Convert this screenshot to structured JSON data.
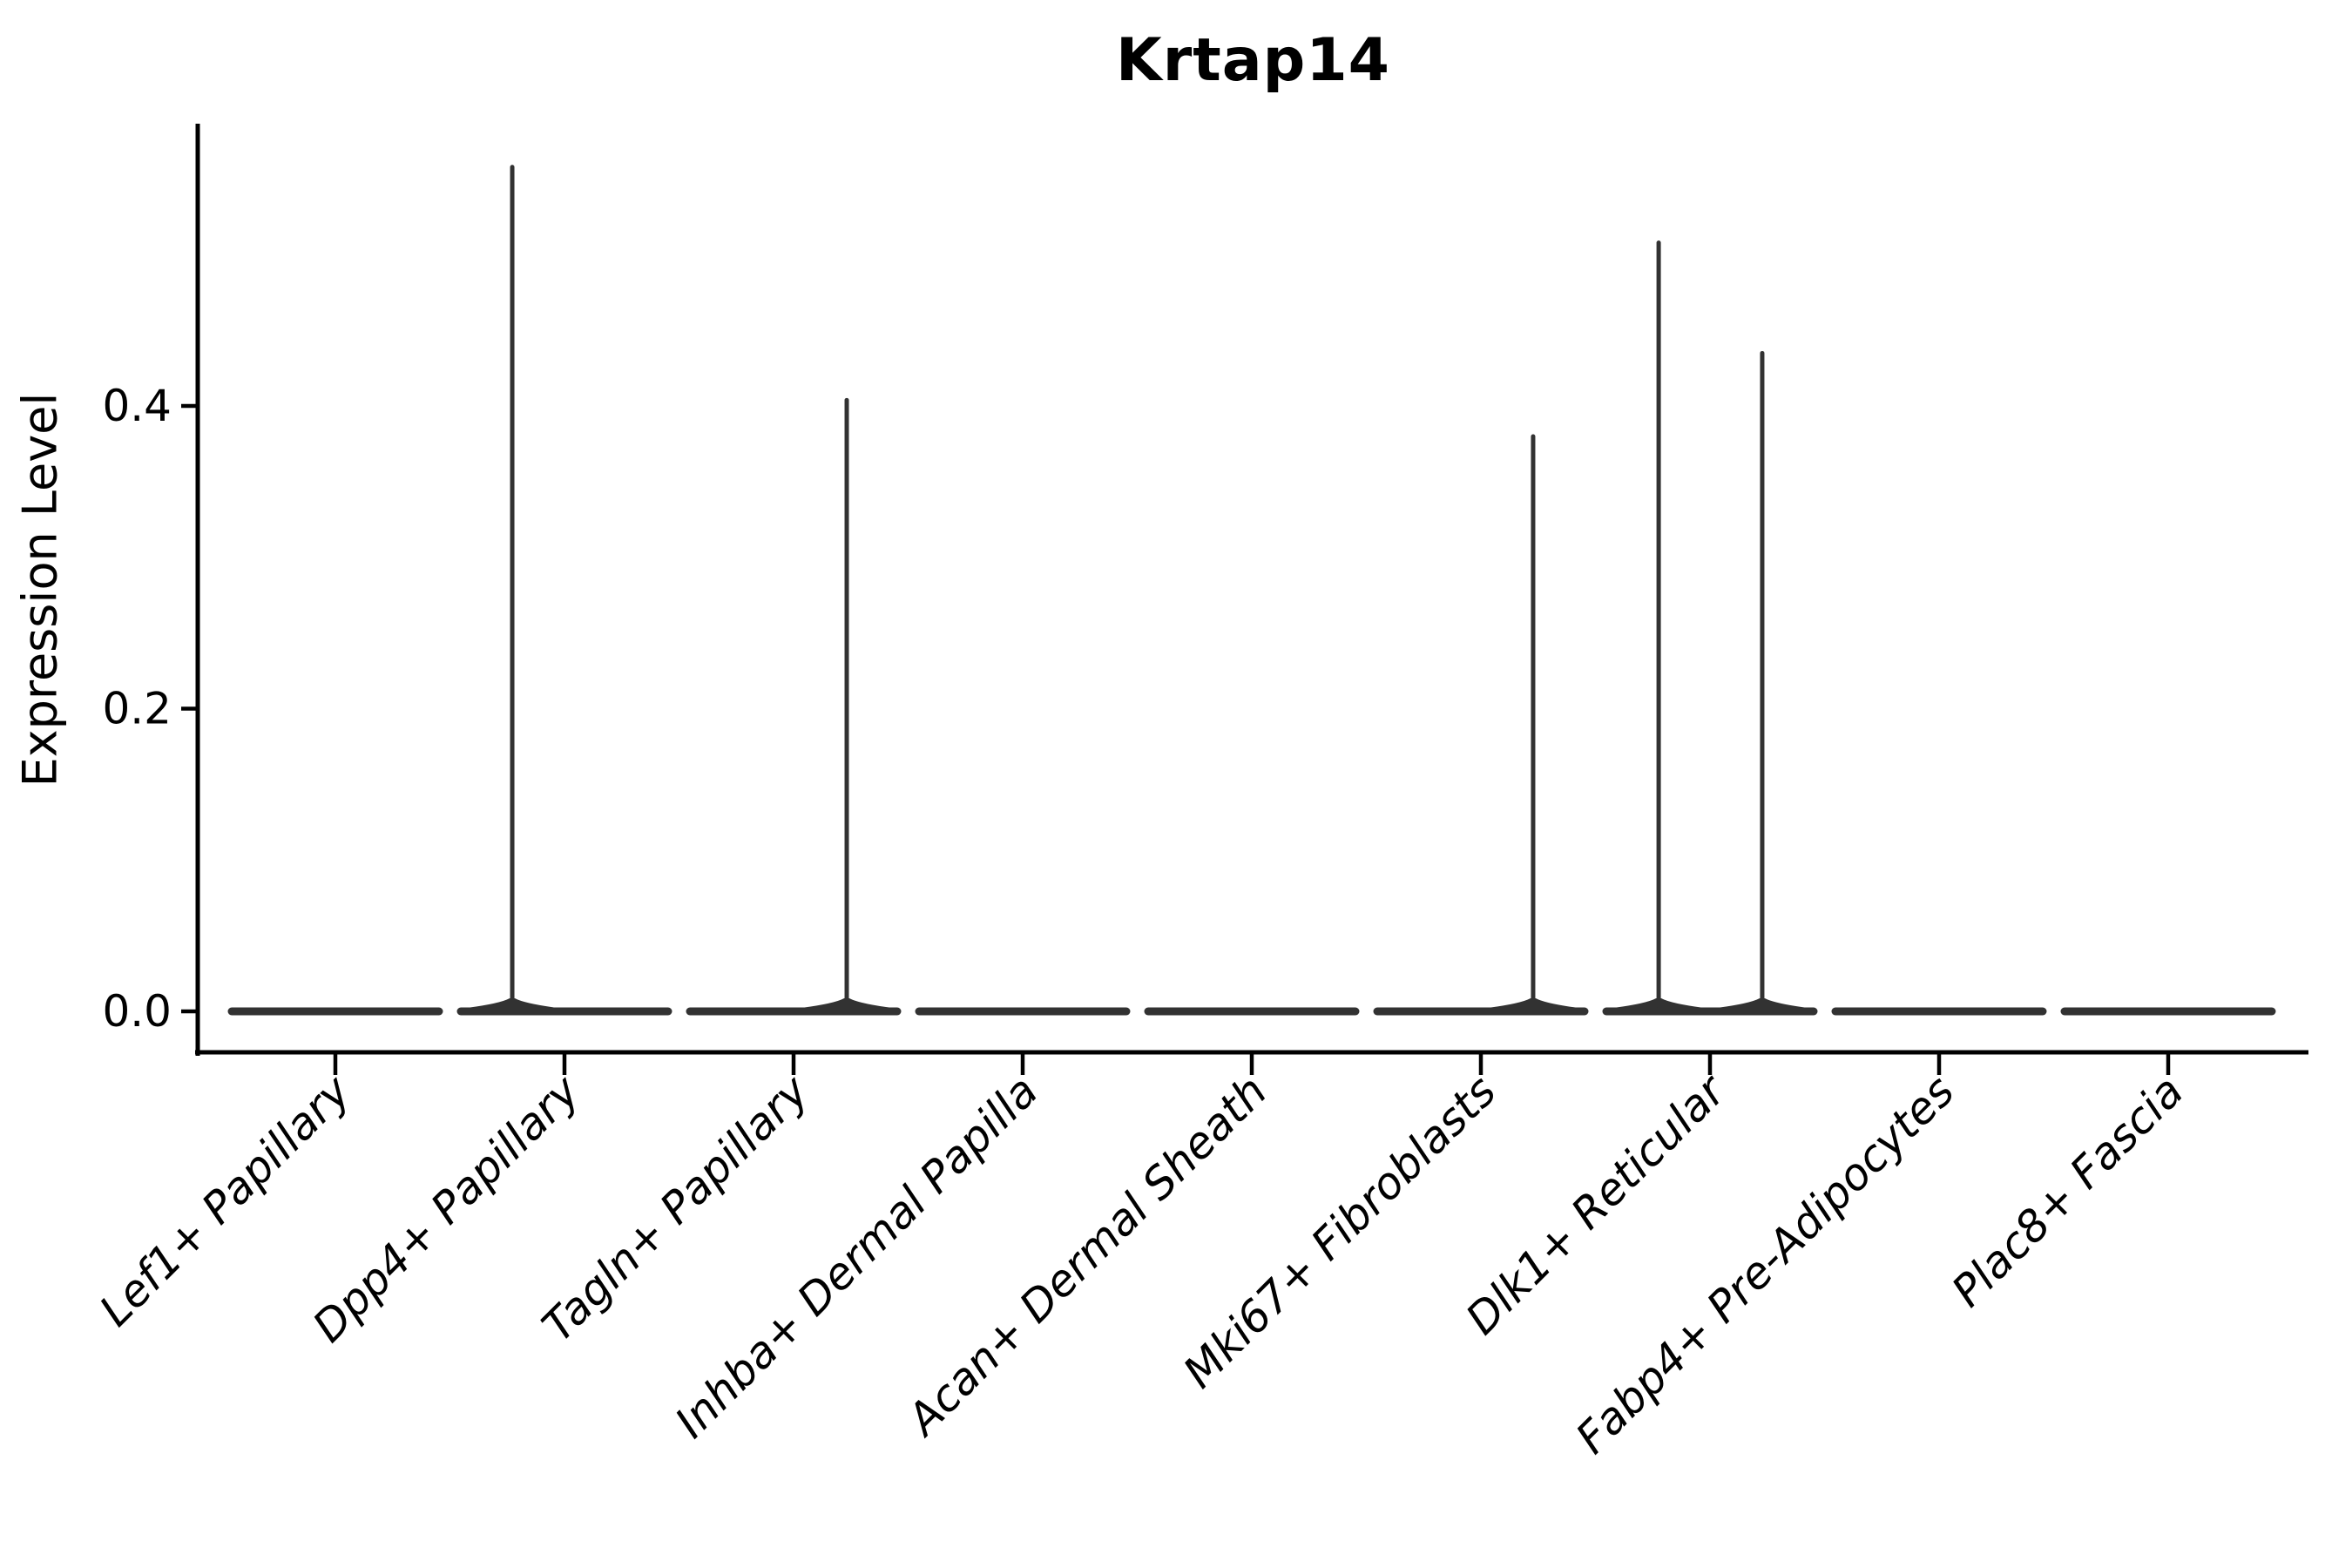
{
  "chart_data": {
    "type": "violin",
    "title": "Krtap14",
    "xlabel": "",
    "ylabel": "Expression Level",
    "categories": [
      "Lef1+ Papillary",
      "Dpp4+ Papillary",
      "Tagln+ Papillary",
      "Inhba+ Dermal Papilla",
      "Acan+ Dermal Sheath",
      "Mki67+ Fibroblasts",
      "Dlk1+ Reticular",
      "Fabp4+ Pre-Adipocytes",
      "Plac8+ Fascia"
    ],
    "y_ticks": [
      {
        "value": 0.0,
        "label": "0.0"
      },
      {
        "value": 0.2,
        "label": "0.2"
      },
      {
        "value": 0.4,
        "label": "0.4"
      }
    ],
    "ylim": [
      0,
      0.587
    ],
    "grid": false,
    "legend": null,
    "x_tick_rotation_deg": 45,
    "colors": {
      "violin": "#323232",
      "spine": "#000000",
      "text": "#000000",
      "background": "#ffffff"
    },
    "violins": [
      {
        "category": "Lef1+ Papillary",
        "max_expression": 0.0,
        "spikes": []
      },
      {
        "category": "Dpp4+ Papillary",
        "max_expression": 0.559,
        "spikes": [
          {
            "value": 0.559,
            "offset_frac": -0.228
          }
        ]
      },
      {
        "category": "Tagln+ Papillary",
        "max_expression": 0.405,
        "spikes": [
          {
            "value": 0.405,
            "offset_frac": 0.232
          }
        ]
      },
      {
        "category": "Inhba+ Dermal Papilla",
        "max_expression": 0.0,
        "spikes": []
      },
      {
        "category": "Acan+ Dermal Sheath",
        "max_expression": 0.0,
        "spikes": []
      },
      {
        "category": "Mki67+ Fibroblasts",
        "max_expression": 0.381,
        "spikes": [
          {
            "value": 0.381,
            "offset_frac": 0.228
          }
        ]
      },
      {
        "category": "Dlk1+ Reticular",
        "max_expression": 0.509,
        "spikes": [
          {
            "value": 0.509,
            "offset_frac": -0.224
          },
          {
            "value": 0.436,
            "offset_frac": 0.228
          }
        ]
      },
      {
        "category": "Fabp4+ Pre-Adipocytes",
        "max_expression": 0.0,
        "spikes": []
      },
      {
        "category": "Plac8+ Fascia",
        "max_expression": 0.0,
        "spikes": []
      }
    ]
  }
}
